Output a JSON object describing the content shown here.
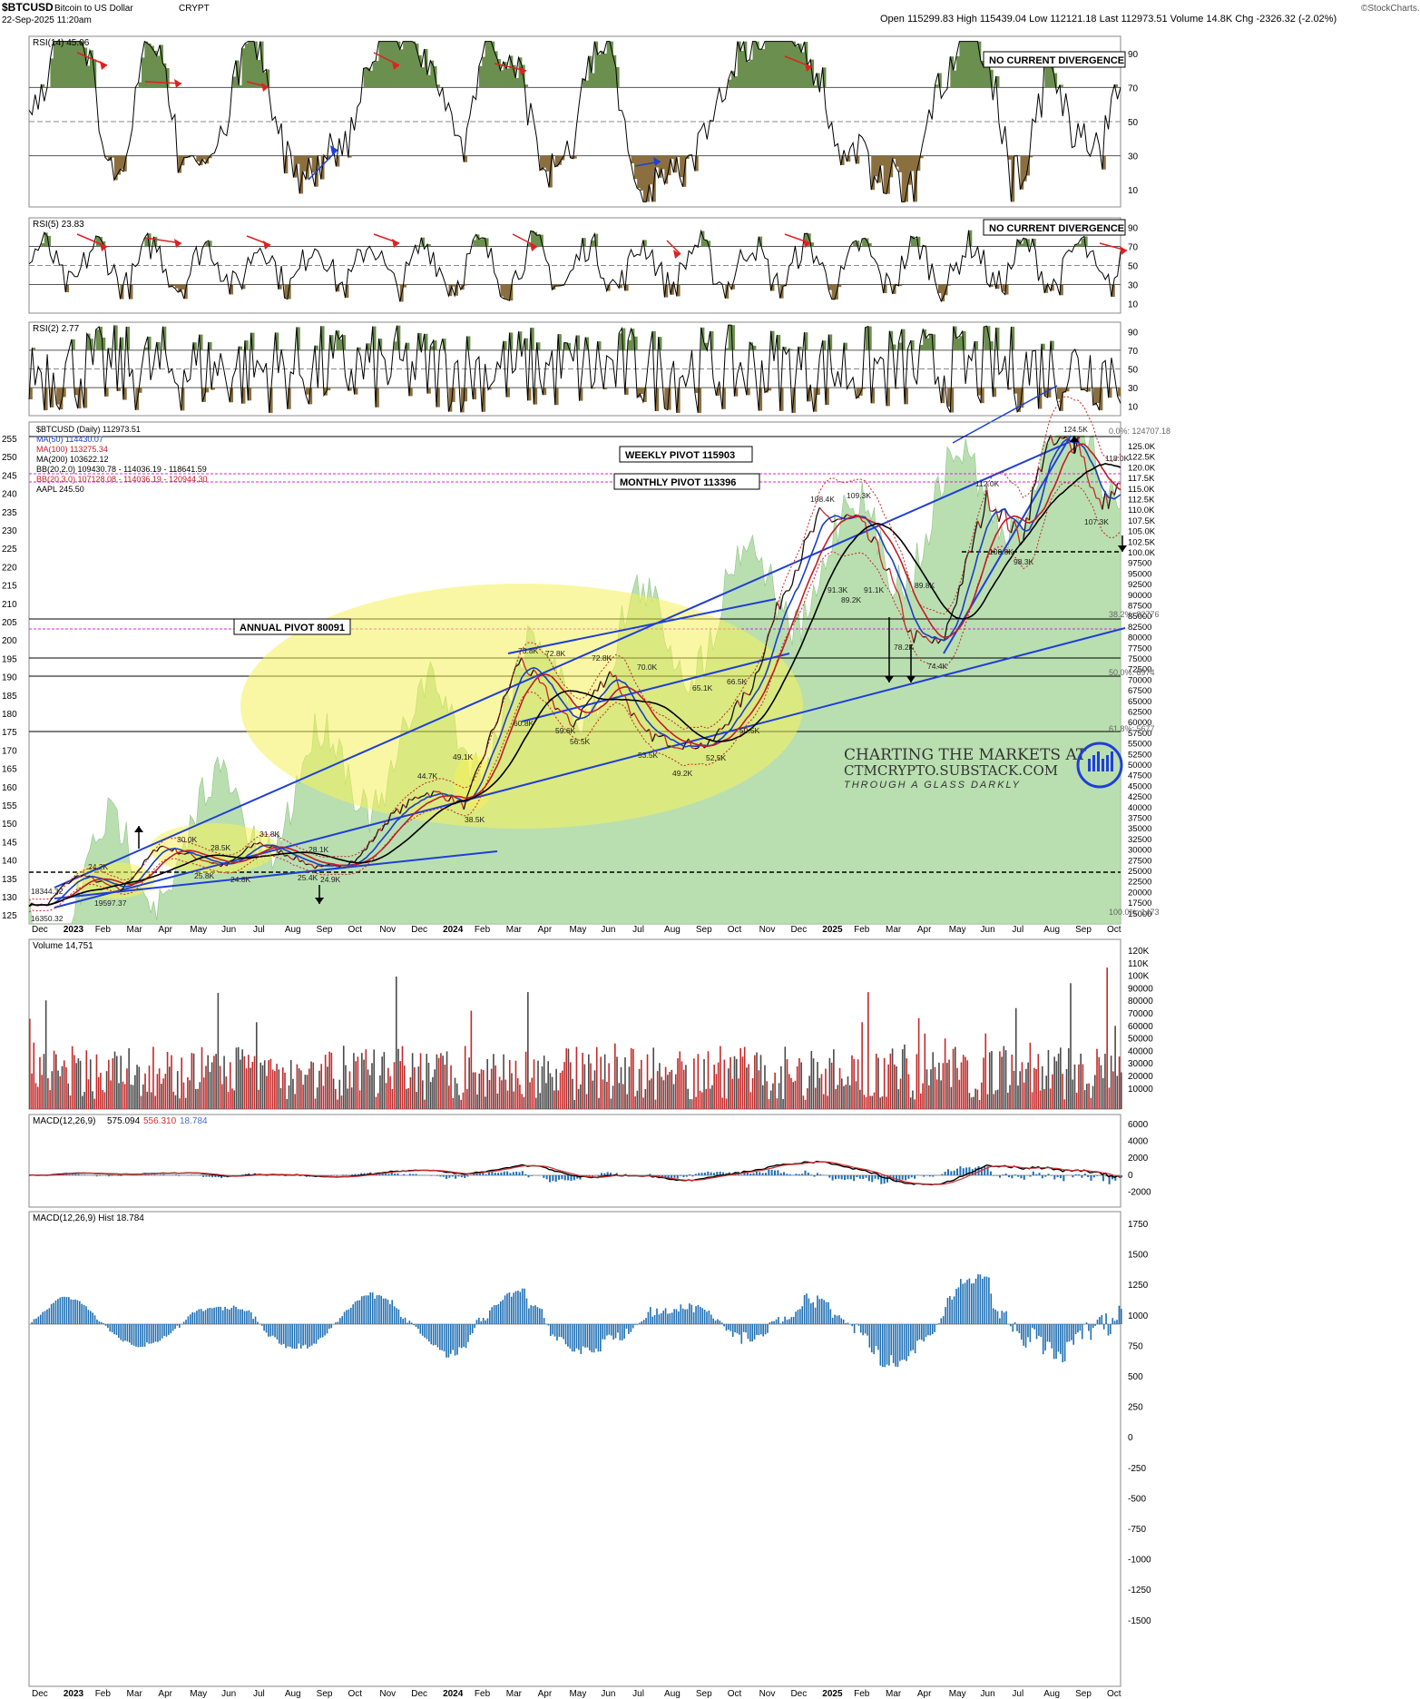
{
  "header": {
    "symbol": "$BTCUSD",
    "name": "Bitcoin to US Dollar",
    "exchange": "CRYPT",
    "timestamp": "22-Sep-2025 11:20am",
    "ohlc_text": "Open 115299.83  High 115439.04  Low 112121.18  Last 112973.51  Volume 14.8K  Chg -2326.32 (-2.02%)",
    "watermark": "©StockCharts.com"
  },
  "colors": {
    "up_area": "#6b8f4e",
    "down_area": "#8b6f3e",
    "price_area": "#b9dfb0",
    "ma50": "#1c3fc0",
    "ma100": "#c01c28",
    "ma200": "#000000",
    "volume_up": "#4a4a4a",
    "volume_down": "#c62828",
    "macd_line": "#000000",
    "signal_line": "#d32f2f",
    "hist": "#1f6fb4",
    "pivot": "#e020e0",
    "trend": "#1f3fd8",
    "highlight": "#f5f05a"
  },
  "panels": {
    "rsi14": {
      "label": "RSI(14) 45.06",
      "ticks": [
        "90",
        "70",
        "50",
        "30",
        "10"
      ],
      "annotation": "NO CURRENT DIVERGENCE"
    },
    "rsi5": {
      "label": "RSI(5) 23.83",
      "ticks": [
        "90",
        "70",
        "50",
        "30",
        "10"
      ],
      "annotation": "NO CURRENT DIVERGENCE"
    },
    "rsi2": {
      "label": "RSI(2) 2.77",
      "ticks": [
        "90",
        "70",
        "50",
        "30",
        "10"
      ]
    },
    "price": {
      "legend": [
        "$BTCUSD (Daily) 112973.51",
        "MA(50) 114430.07",
        "MA(100) 113275.34",
        "MA(200) 103622.12",
        "BB(20,2.0) 109430.78 - 114036.19 - 118641.59",
        "BB(20,3.0) 107128.08 - 114036.19 - 120944.30",
        "AAPL 245.50"
      ],
      "left_ticks": [
        "255",
        "250",
        "245",
        "240",
        "235",
        "230",
        "225",
        "220",
        "215",
        "210",
        "205",
        "200",
        "195",
        "190",
        "185",
        "180",
        "175",
        "170",
        "165",
        "160",
        "155",
        "150",
        "145",
        "140",
        "135",
        "130",
        "125"
      ],
      "right_ticks": [
        "125.0K",
        "122.5K",
        "120.0K",
        "117.5K",
        "115.0K",
        "112.5K",
        "110.0K",
        "107.5K",
        "105.0K",
        "102.5K",
        "100.0K",
        "97500",
        "95000",
        "92500",
        "90000",
        "87500",
        "85000",
        "82500",
        "80000",
        "77500",
        "75000",
        "72500",
        "70000",
        "67500",
        "65000",
        "62500",
        "60000",
        "57500",
        "55000",
        "52500",
        "50000",
        "47500",
        "45000",
        "42500",
        "40000",
        "37500",
        "35000",
        "32500",
        "30000",
        "27500",
        "25000",
        "22500",
        "20000",
        "17500",
        "15000"
      ],
      "pivot_labels": {
        "weekly": "WEEKLY PIVOT 115903",
        "monthly": "MONTHLY PIVOT 113396",
        "annual": "ANNUAL PIVOT 80091"
      },
      "fib_labels": [
        "0.0%: 124707.18",
        "38.2%: 82776",
        "50.0%: 6974",
        "61.8%: 5677",
        "100.0%: 1473"
      ],
      "peak_labels": [
        "124.5K",
        "118.0K",
        "112.0K",
        "108.4K",
        "109.3K",
        "107.3K",
        "100.8K",
        "98.3K",
        "91.3K",
        "89.2K",
        "91.1K",
        "89.8K",
        "78.2K",
        "74.4K",
        "73.8K",
        "72.8K",
        "72.8K",
        "70.0K",
        "66.5K",
        "65.1K",
        "60.8K",
        "59.6K",
        "56.5K",
        "53.5K",
        "52.5K",
        "50.5K",
        "49.2K",
        "49.1K",
        "44.7K",
        "38.5K",
        "31.8K",
        "30.0K",
        "28.5K",
        "28.1K",
        "25.8K",
        "25.4K",
        "24.9K",
        "24.8K",
        "24.2K",
        "19597.37",
        "18344.32",
        "16350.32"
      ],
      "watermark_lines": [
        "CHARTING THE MARKETS AT",
        "CTMCRYPTO.SUBSTACK.COM",
        "THROUGH A GLASS DARKLY"
      ]
    },
    "volume": {
      "label": "Volume 14,751",
      "ticks": [
        "120K",
        "110K",
        "100K",
        "90000",
        "80000",
        "70000",
        "60000",
        "50000",
        "40000",
        "30000",
        "20000",
        "10000"
      ]
    },
    "macd": {
      "label_prefix": "MACD(12,26,9)",
      "value_macd": "575.094",
      "value_signal": "556.310",
      "value_hist": "18.784",
      "ticks": [
        "6000",
        "4000",
        "2000",
        "0",
        "-2000"
      ]
    },
    "hist": {
      "label": "MACD(12,26,9) Hist 18.784",
      "ticks": [
        "1750",
        "1500",
        "1250",
        "1000",
        "750",
        "500",
        "250",
        "0",
        "-250",
        "-500",
        "-750",
        "-1000",
        "-1250",
        "-1500"
      ]
    }
  },
  "x_axis": [
    "Dec",
    "2023",
    "Feb",
    "Mar",
    "Apr",
    "May",
    "Jun",
    "Jul",
    "Aug",
    "Sep",
    "Oct",
    "Nov",
    "Dec",
    "2024",
    "Feb",
    "Mar",
    "Apr",
    "May",
    "Jun",
    "Jul",
    "Aug",
    "Sep",
    "Oct",
    "Nov",
    "Dec",
    "2025",
    "Feb",
    "Mar",
    "Apr",
    "May",
    "Jun",
    "Jul",
    "Aug",
    "Sep",
    "Oct"
  ],
  "chart_data": {
    "type": "line",
    "title": "$BTCUSD Bitcoin to US Dollar",
    "x": [
      "2022-12-15",
      "2023-01-01",
      "2023-01-15",
      "2023-02-01",
      "2023-03-10",
      "2023-04-15",
      "2023-06-15",
      "2023-07-15",
      "2023-09-11",
      "2023-10-15",
      "2023-11-15",
      "2023-12-15",
      "2024-01-01",
      "2024-01-23",
      "2024-03-14",
      "2024-05-01",
      "2024-06-07",
      "2024-07-05",
      "2024-08-05",
      "2024-09-06",
      "2024-10-15",
      "2024-11-12",
      "2024-12-17",
      "2025-01-20",
      "2025-02-15",
      "2025-03-11",
      "2025-04-09",
      "2025-05-22",
      "2025-06-22",
      "2025-07-14",
      "2025-08-14",
      "2025-09-01",
      "2025-09-22"
    ],
    "series": [
      {
        "name": "$BTCUSD",
        "values": [
          16800,
          16600,
          20900,
          23700,
          20000,
          30400,
          25500,
          31200,
          25000,
          27000,
          37000,
          42500,
          42300,
          39500,
          73500,
          58000,
          71000,
          56500,
          54000,
          53500,
          67000,
          88000,
          106000,
          105500,
          96000,
          79000,
          76500,
          111000,
          101000,
          122000,
          124000,
          108500,
          112973.51
        ]
      }
    ],
    "panels": [
      "RSI(14)",
      "RSI(5)",
      "RSI(2)",
      "Price",
      "Volume",
      "MACD(12,26,9)",
      "MACD Hist"
    ]
  }
}
